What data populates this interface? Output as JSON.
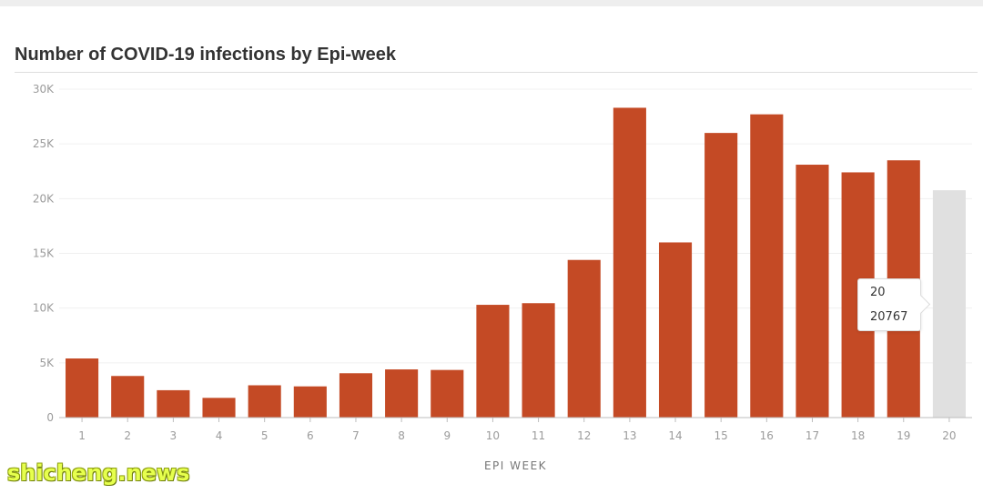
{
  "title": "Number of COVID-19 infections by Epi-week",
  "watermark": "shicheng.news",
  "colors": {
    "bar": "#c44a25",
    "highlight_bar": "#e0e0e0",
    "grid": "#f0f0f0",
    "axis": "#bdbdbd"
  },
  "tooltip": {
    "category": "20",
    "value": "20767"
  },
  "chart_data": {
    "type": "bar",
    "title": "Number of COVID-19 infections by Epi-week",
    "xlabel": "EPI WEEK",
    "ylabel": "",
    "categories": [
      "1",
      "2",
      "3",
      "4",
      "5",
      "6",
      "7",
      "8",
      "9",
      "10",
      "11",
      "12",
      "13",
      "14",
      "15",
      "16",
      "17",
      "18",
      "19",
      "20"
    ],
    "values": [
      5400,
      3800,
      2500,
      1800,
      2950,
      2850,
      4050,
      4400,
      4350,
      10300,
      10450,
      14400,
      28300,
      16000,
      26000,
      27700,
      23100,
      22400,
      23500,
      20767
    ],
    "highlighted_category": "20",
    "ylim": [
      0,
      30000
    ],
    "yticks": [
      0,
      5000,
      10000,
      15000,
      20000,
      25000,
      30000
    ],
    "ytick_labels": [
      "0",
      "5K",
      "10K",
      "15K",
      "20K",
      "25K",
      "30K"
    ],
    "grid": true,
    "legend": "none"
  }
}
